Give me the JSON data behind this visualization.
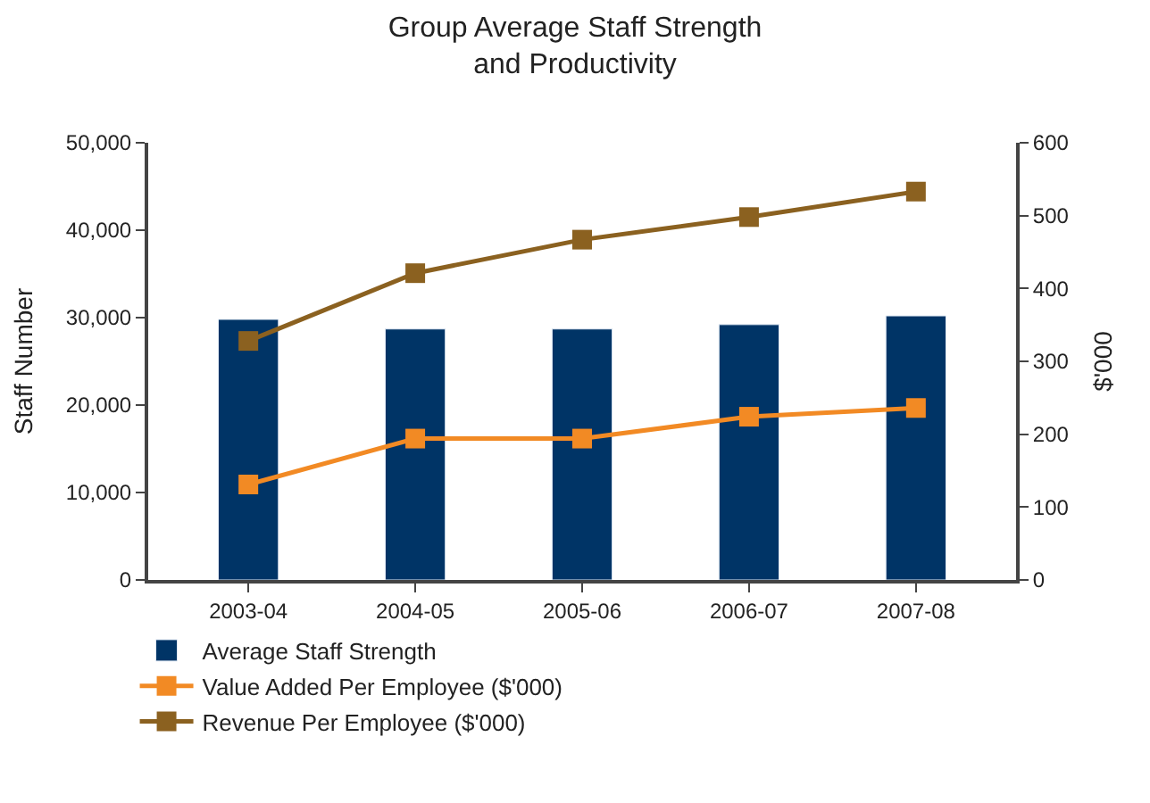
{
  "chart_data": {
    "type": "bar",
    "title": "Group Average Staff Strength\nand Productivity",
    "categories": [
      "2003-04",
      "2004-05",
      "2005-06",
      "2006-07",
      "2007-08"
    ],
    "ylabel": "Staff Number",
    "y2label": "$'000",
    "ylim": [
      0,
      50000
    ],
    "yticks": [
      {
        "value": 0,
        "label": "0"
      },
      {
        "value": 10000,
        "label": "10,000"
      },
      {
        "value": 20000,
        "label": "20,000"
      },
      {
        "value": 30000,
        "label": "30,000"
      },
      {
        "value": 40000,
        "label": "40,000"
      },
      {
        "value": 50000,
        "label": "50,000"
      }
    ],
    "y2lim": [
      0,
      600
    ],
    "y2ticks": [
      0,
      100,
      200,
      300,
      400,
      500,
      600
    ],
    "series": [
      {
        "name": "Average Staff Strength",
        "color": "#003466",
        "values": [
          29800,
          28700,
          28700,
          29200,
          30200
        ]
      },
      {
        "name": "Value Added Per Employee ($'000)",
        "type": "line",
        "axis": "y2",
        "color": "#f28a24",
        "values": [
          131,
          194,
          194,
          224,
          236
        ]
      },
      {
        "name": "Revenue Per Employee ($'000)",
        "type": "line",
        "axis": "y2",
        "color": "#8b6120",
        "values": [
          328,
          421,
          467,
          498,
          533
        ]
      }
    ],
    "marker": "square",
    "line_style": "solid",
    "grid": false,
    "legend": "bottom"
  }
}
